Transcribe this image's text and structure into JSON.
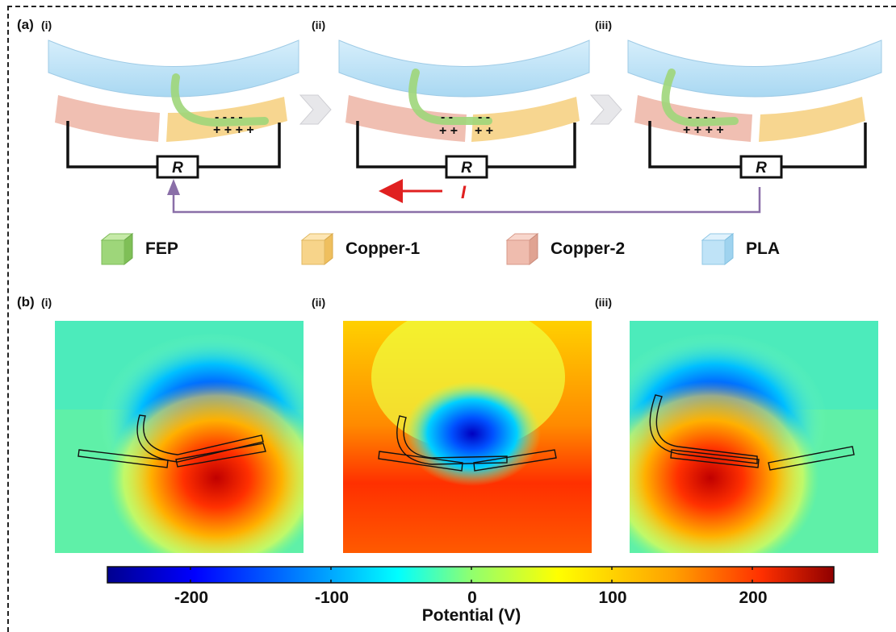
{
  "panel_a": {
    "label": "(a)",
    "steps": [
      "(i)",
      "(ii)",
      "(iii)"
    ],
    "resistor": "R",
    "current": "I",
    "charges": {
      "minus4": "- - - -",
      "plus4": "+ + + +",
      "minus_pair": "- -",
      "plus_pair": "+ +"
    }
  },
  "legend": [
    {
      "label": "FEP",
      "color": "#9ed67a"
    },
    {
      "label": "Copper-1",
      "color": "#f7d48a"
    },
    {
      "label": "Copper-2",
      "color": "#efbcae"
    },
    {
      "label": "PLA",
      "color": "#bfe3f7"
    }
  ],
  "panel_b": {
    "label": "(b)",
    "steps": [
      "(i)",
      "(ii)",
      "(iii)"
    ]
  },
  "colorbar": {
    "ticks": [
      "-200",
      "-100",
      "0",
      "100",
      "200"
    ],
    "title": "Potential (V)",
    "colors": [
      "#00008f",
      "#0000ff",
      "#00a0ff",
      "#00ffff",
      "#8fff70",
      "#ffff00",
      "#ffa000",
      "#ff3000",
      "#8f0000"
    ]
  }
}
